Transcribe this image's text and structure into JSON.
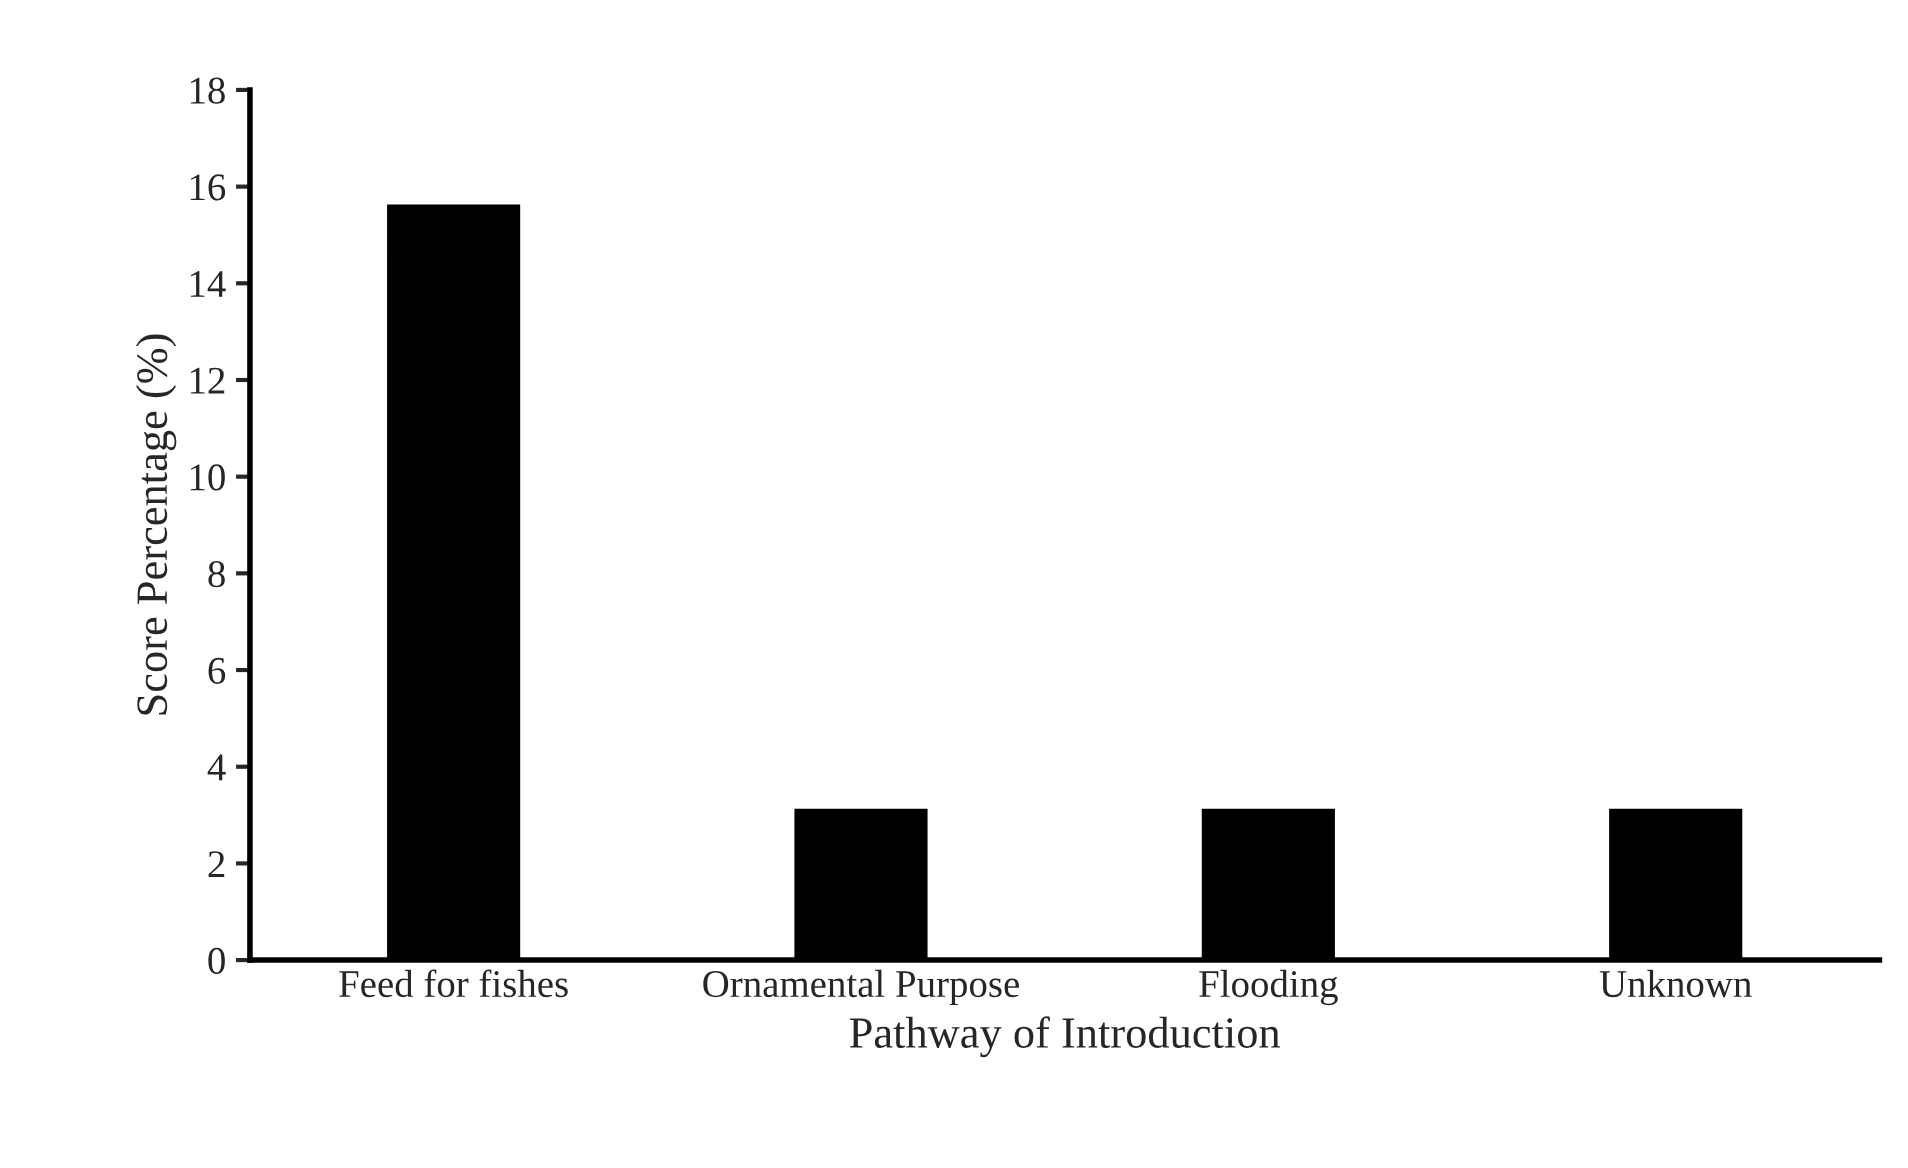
{
  "chart_data": {
    "type": "bar",
    "xlabel": "Pathway of Introduction",
    "ylabel": "Score Percentage (%)",
    "categories": [
      "Feed for fishes",
      "Ornamental Purpose",
      "Flooding",
      "Unknown"
    ],
    "values": [
      15.6,
      3.1,
      3.1,
      3.1
    ],
    "color": "#000000",
    "ylim": [
      0,
      18
    ],
    "yticks": [
      0,
      2,
      4,
      6,
      8,
      10,
      12,
      14,
      16,
      18
    ],
    "grid": false,
    "legend": false
  }
}
